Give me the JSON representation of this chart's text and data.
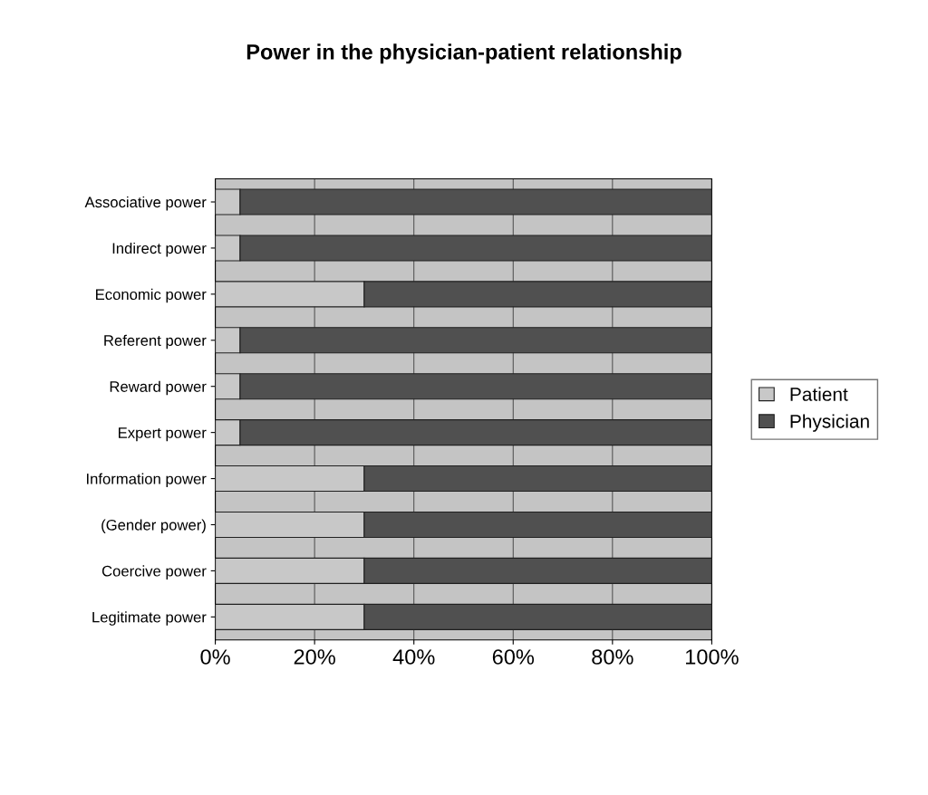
{
  "chart_data": {
    "type": "bar",
    "title": "Power in the physician-patient relationship",
    "orientation": "horizontal",
    "stacked": true,
    "categories": [
      "Associative power",
      "Indirect power",
      "Economic power",
      "Referent power",
      "Reward power",
      "Expert power",
      "Information power",
      "(Gender power)",
      "Coercive power",
      "Legitimate power"
    ],
    "series": [
      {
        "name": "Patient",
        "color": "#c8c8c8",
        "values": [
          5,
          5,
          30,
          5,
          5,
          5,
          30,
          30,
          30,
          30
        ]
      },
      {
        "name": "Physician",
        "color": "#505050",
        "values": [
          95,
          95,
          70,
          95,
          95,
          95,
          70,
          70,
          70,
          70
        ]
      }
    ],
    "xlim": [
      0,
      100
    ],
    "xticks": [
      {
        "value": 0,
        "label": "0%"
      },
      {
        "value": 20,
        "label": "20%"
      },
      {
        "value": 40,
        "label": "40%"
      },
      {
        "value": 60,
        "label": "60%"
      },
      {
        "value": 80,
        "label": "80%"
      },
      {
        "value": 100,
        "label": "100%"
      }
    ],
    "grid": "x",
    "legend": "right"
  }
}
